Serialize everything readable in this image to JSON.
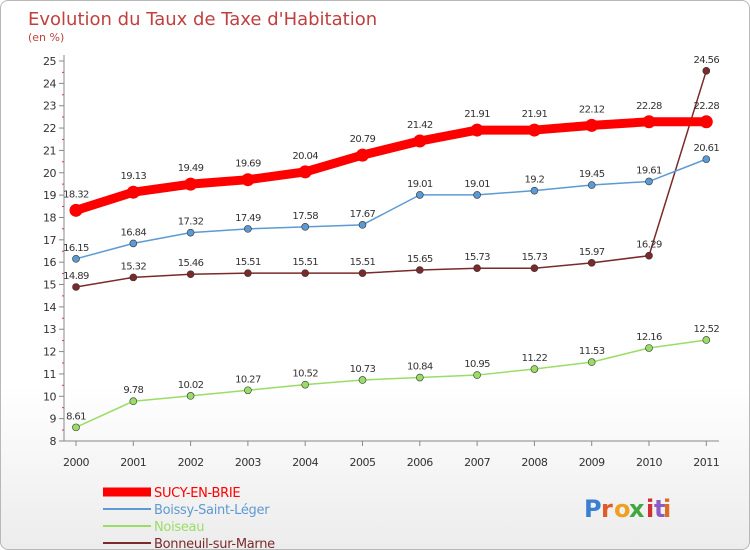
{
  "chart_data": {
    "type": "line",
    "title": "Evolution du Taux de Taxe d'Habitation",
    "subtitle": "(en %)",
    "x": [
      "2000",
      "2001",
      "2002",
      "2003",
      "2004",
      "2005",
      "2006",
      "2007",
      "2008",
      "2009",
      "2010",
      "2011"
    ],
    "ylim": [
      8,
      25
    ],
    "yticks": [
      8,
      9,
      10,
      11,
      12,
      13,
      14,
      15,
      16,
      17,
      18,
      19,
      20,
      21,
      22,
      23,
      24,
      25
    ],
    "grid": false,
    "legend_position": "bottom-left",
    "series": [
      {
        "name": "SUCY-EN-BRIE",
        "color": "#ff0000",
        "values": [
          18.32,
          19.13,
          19.49,
          19.69,
          20.04,
          20.79,
          21.42,
          21.91,
          21.91,
          22.12,
          22.28,
          22.28
        ],
        "labels": [
          "18.32",
          "19.13",
          "19.49",
          "19.69",
          "20.04",
          "20.79",
          "21.42",
          "21.91",
          "21.91",
          "22.12",
          "22.28",
          "22.28"
        ]
      },
      {
        "name": "Boissy-Saint-Léger",
        "color": "#5d9ad3",
        "values": [
          16.15,
          16.84,
          17.32,
          17.49,
          17.58,
          17.67,
          19.01,
          19.01,
          19.2,
          19.45,
          19.61,
          20.61
        ],
        "labels": [
          "16.15",
          "16.84",
          "17.32",
          "17.49",
          "17.58",
          "17.67",
          "19.01",
          "19.01",
          "19.2",
          "19.45",
          "19.61",
          "20.61"
        ]
      },
      {
        "name": "Noiseau",
        "color": "#99dd66",
        "values": [
          8.61,
          9.78,
          10.02,
          10.27,
          10.52,
          10.73,
          10.84,
          10.95,
          11.22,
          11.53,
          12.16,
          12.52
        ],
        "labels": [
          "8.61",
          "9.78",
          "10.02",
          "10.27",
          "10.52",
          "10.73",
          "10.84",
          "10.95",
          "11.22",
          "11.53",
          "12.16",
          "12.52"
        ]
      },
      {
        "name": "Bonneuil-sur-Marne",
        "color": "#7a2a2a",
        "values": [
          14.89,
          15.32,
          15.46,
          15.51,
          15.51,
          15.51,
          15.65,
          15.73,
          15.73,
          15.97,
          16.29,
          24.56
        ],
        "labels": [
          "14.89",
          "15.32",
          "15.46",
          "15.51",
          "15.51",
          "15.51",
          "15.65",
          "15.73",
          "15.73",
          "15.97",
          "16.29",
          "24.56"
        ]
      }
    ]
  },
  "logo": {
    "text": "Proxiti",
    "colors": [
      "#3a7fd0",
      "#e25a2a",
      "#f0a020",
      "#3fa83f",
      "#d03030",
      "#8b5cc4",
      "#e06a20"
    ]
  }
}
